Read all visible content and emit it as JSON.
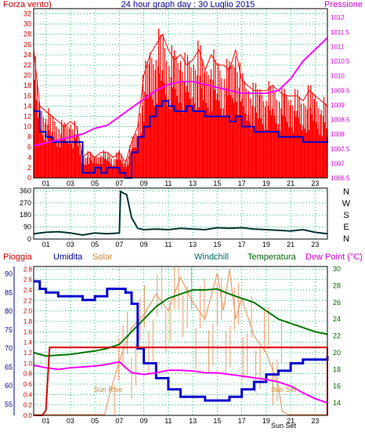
{
  "chart_data": [
    {
      "type": "line",
      "title": "24 hour graph day : 30 Luglio 2015",
      "x_ticks": [
        "01",
        "03",
        "05",
        "07",
        "09",
        "11",
        "13",
        "15",
        "17",
        "19",
        "21",
        "23"
      ],
      "left_axis": {
        "label": "Forza vento)",
        "color": "#cc0000",
        "ticks": [
          0,
          2,
          4,
          6,
          8,
          10,
          12,
          14,
          16,
          18,
          20,
          22,
          24,
          26,
          28,
          30,
          32
        ],
        "ylim": [
          0,
          33
        ]
      },
      "right_axis": {
        "label": "Pressione",
        "color": "#cc00cc",
        "ticks": [
          1006.5,
          1007,
          1007.5,
          1008,
          1008.5,
          1009,
          1009.5,
          1010,
          1010.5,
          1011,
          1011.5,
          1012
        ],
        "ylim": [
          1006.5,
          1012.3
        ]
      },
      "series": [
        {
          "name": "gust",
          "color": "#ff0000",
          "hours": [
            0,
            0.5,
            1,
            1.5,
            2,
            2.5,
            3,
            3.5,
            4,
            4.5,
            5,
            5.5,
            6,
            6.5,
            7,
            7.5,
            8,
            8.5,
            9,
            9.5,
            10,
            10.5,
            11,
            11.5,
            12,
            12.5,
            13,
            13.5,
            14,
            14.5,
            15,
            15.5,
            16,
            16.5,
            17,
            17.5,
            18,
            18.5,
            19,
            19.5,
            20,
            20.5,
            21,
            21.5,
            22,
            22.5,
            23,
            23.5,
            24
          ],
          "values": [
            25,
            14,
            13,
            12,
            11,
            10,
            11,
            10,
            4,
            5,
            4,
            5,
            5,
            4,
            5,
            3,
            7,
            10,
            20,
            24,
            26,
            28,
            25,
            23,
            24,
            22,
            23,
            25,
            21,
            24,
            22,
            22,
            21,
            25,
            19,
            18,
            17,
            17,
            17,
            18,
            17,
            16,
            16,
            16,
            15,
            17,
            16,
            15,
            14
          ]
        },
        {
          "name": "wind",
          "color": "#0000cc",
          "hours": [
            0,
            0.5,
            1,
            1.5,
            2,
            2.5,
            3,
            3.5,
            4,
            4.5,
            5,
            5.5,
            6,
            6.5,
            7,
            7.5,
            8,
            8.5,
            9,
            9.5,
            10,
            10.5,
            11,
            11.5,
            12,
            12.5,
            13,
            13.5,
            14,
            14.5,
            15,
            15.5,
            16,
            16.5,
            17,
            17.5,
            18,
            18.5,
            19,
            19.5,
            20,
            20.5,
            21,
            21.5,
            22,
            22.5,
            23,
            23.5,
            24
          ],
          "values": [
            13,
            9,
            8,
            7,
            7,
            7,
            7,
            7,
            1,
            1,
            2,
            1,
            2,
            2,
            1,
            0,
            5,
            8,
            10,
            12,
            14,
            15,
            14,
            13,
            13,
            14,
            13,
            13,
            12,
            12,
            12,
            12,
            11,
            12,
            10,
            10,
            9,
            9,
            9,
            9,
            8,
            8,
            8,
            8,
            7,
            7,
            7,
            7,
            8
          ]
        },
        {
          "name": "pressure",
          "color": "#ff00ff",
          "axis": "right",
          "hours": [
            0,
            1,
            2,
            3,
            4,
            5,
            6,
            7,
            8,
            9,
            10,
            11,
            12,
            13,
            14,
            15,
            16,
            17,
            18,
            19,
            20,
            21,
            22,
            23,
            24
          ],
          "values": [
            1007.6,
            1007.7,
            1007.8,
            1007.9,
            1008.0,
            1008.2,
            1008.3,
            1008.6,
            1008.9,
            1009.2,
            1009.5,
            1009.7,
            1009.8,
            1009.8,
            1009.7,
            1009.6,
            1009.5,
            1009.4,
            1009.4,
            1009.4,
            1009.5,
            1009.9,
            1010.5,
            1010.9,
            1011.3
          ]
        }
      ]
    },
    {
      "type": "line",
      "x_ticks": [
        "01",
        "03",
        "05",
        "07",
        "09",
        "11",
        "13",
        "15",
        "17",
        "19",
        "21",
        "23"
      ],
      "left_axis": {
        "ticks": [
          0,
          90,
          180,
          270,
          360
        ],
        "ylim": [
          0,
          380
        ]
      },
      "right_labels": [
        "N",
        "W",
        "S",
        "E",
        "N"
      ],
      "series": [
        {
          "name": "direction",
          "color": "#003333",
          "hours": [
            0,
            1,
            2,
            3,
            4,
            5,
            6,
            7,
            7.1,
            7.6,
            8,
            8.5,
            9,
            10,
            11,
            12,
            13,
            14,
            15,
            16,
            17,
            18,
            19,
            20,
            21,
            22,
            23,
            24
          ],
          "values": [
            40,
            50,
            55,
            45,
            30,
            45,
            40,
            45,
            355,
            330,
            160,
            80,
            70,
            75,
            70,
            80,
            75,
            70,
            85,
            80,
            85,
            75,
            70,
            65,
            60,
            70,
            50,
            40
          ]
        }
      ]
    },
    {
      "type": "line",
      "x_ticks": [
        "01",
        "03",
        "05",
        "07",
        "09",
        "11",
        "13",
        "15",
        "17",
        "19",
        "21",
        "23"
      ],
      "header_labels": [
        {
          "text": "Pioggia",
          "color": "#cc0000"
        },
        {
          "text": "Umidita",
          "color": "#000099"
        },
        {
          "text": "Solar",
          "color": "#cc8833"
        },
        {
          "text": "Windchill",
          "color": "#006666"
        },
        {
          "text": "Temperatura",
          "color": "#006600"
        },
        {
          "text": "Dew Point (°C)",
          "color": "#cc00cc"
        }
      ],
      "rain_axis": {
        "color": "#cc0000",
        "ticks": [
          0,
          0.2,
          0.4,
          0.6,
          0.8,
          1.0,
          1.2,
          1.4,
          1.6,
          1.8,
          2.0,
          2.2,
          2.4,
          2.6,
          2.8
        ],
        "ylim": [
          0,
          2.85
        ]
      },
      "humidity_axis": {
        "color": "#000099",
        "ticks": [
          55,
          60,
          65,
          70,
          75,
          80,
          85,
          90
        ],
        "ylim": [
          52,
          92
        ]
      },
      "temp_axis": {
        "color": "#006600",
        "ticks": [
          14,
          16,
          18,
          20,
          22,
          24,
          26,
          28,
          30
        ],
        "ylim": [
          12.5,
          30.3
        ]
      },
      "annotations": [
        "Sun Rise",
        "Sun Set",
        "Sun Set"
      ],
      "series": [
        {
          "name": "rain",
          "color": "#dd0000",
          "axis": "rain",
          "hours": [
            0,
            0.7,
            1.0,
            1.3,
            2,
            24
          ],
          "values": [
            0,
            0,
            0.1,
            1.3,
            1.3,
            1.3
          ]
        },
        {
          "name": "humidity",
          "color": "#0000cc",
          "axis": "humidity",
          "hours": [
            0,
            0.5,
            1,
            2,
            3,
            4,
            5,
            6,
            7,
            7.5,
            8,
            8.5,
            9,
            10,
            11,
            12,
            13,
            14,
            15,
            16,
            17,
            18,
            19,
            20,
            21,
            22,
            23,
            24
          ],
          "values": [
            88,
            86,
            85,
            84,
            84,
            83,
            84,
            86,
            86,
            85,
            82,
            70,
            66,
            62,
            59,
            57,
            57,
            56,
            56,
            57,
            59,
            61,
            63,
            64,
            66,
            67,
            67,
            68
          ]
        },
        {
          "name": "solar",
          "color": "#ee9966",
          "axis": "temp",
          "hours": [
            0,
            5.8,
            6.2,
            7.0,
            8.0,
            9.0,
            10.0,
            11.0,
            12.0,
            13.0,
            14.0,
            15.0,
            15.5,
            16.0,
            16.5,
            17.0,
            18.0,
            19.0,
            20.0,
            20.3,
            20.8,
            24
          ],
          "values": [
            12.6,
            12.6,
            15.0,
            19.0,
            23.0,
            24.5,
            27.0,
            25.0,
            29.0,
            26.0,
            24.0,
            29.5,
            25.0,
            30.0,
            24.0,
            26.5,
            22.0,
            20.0,
            16.0,
            13.0,
            12.6,
            12.6
          ]
        },
        {
          "name": "temperature",
          "color": "#007700",
          "axis": "temp",
          "hours": [
            0,
            1,
            2,
            3,
            4,
            5,
            6,
            7,
            8,
            9,
            10,
            11,
            12,
            13,
            14,
            15,
            16,
            17,
            18,
            19,
            20,
            21,
            22,
            23,
            24
          ],
          "values": [
            20.0,
            19.6,
            19.7,
            19.8,
            20.0,
            20.2,
            20.5,
            21.0,
            22.5,
            24.0,
            25.5,
            26.5,
            27.0,
            27.5,
            27.5,
            27.6,
            27.0,
            26.5,
            26.0,
            25.0,
            24.0,
            23.5,
            23.0,
            22.5,
            22.2
          ]
        },
        {
          "name": "dew point",
          "color": "#ff00ff",
          "axis": "temp",
          "hours": [
            0,
            1,
            2,
            3,
            4,
            5,
            6,
            7,
            8,
            9,
            10,
            11,
            12,
            13,
            14,
            15,
            16,
            17,
            18,
            19,
            20,
            21,
            22,
            23,
            24
          ],
          "values": [
            18.5,
            18.2,
            18.0,
            18.2,
            18.3,
            18.4,
            18.6,
            18.9,
            17.6,
            17.4,
            17.6,
            17.9,
            17.9,
            17.8,
            17.6,
            17.6,
            17.4,
            17.2,
            17.0,
            16.8,
            16.5,
            16.0,
            15.2,
            14.5,
            14.0
          ]
        }
      ]
    }
  ]
}
